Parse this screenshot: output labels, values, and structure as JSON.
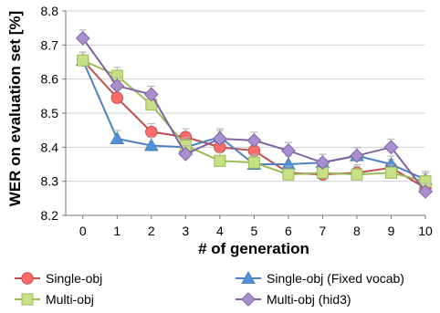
{
  "chart_data": {
    "type": "line",
    "xlabel": "# of generation",
    "ylabel": "WER  on evaluation set [%]",
    "x": [
      0,
      1,
      2,
      3,
      4,
      5,
      6,
      7,
      8,
      9,
      10
    ],
    "ylim": [
      8.2,
      8.8
    ],
    "yticks": [
      "8.2",
      "8.3",
      "8.4",
      "8.5",
      "8.6",
      "8.7",
      "8.8"
    ],
    "xticks": [
      "0",
      "1",
      "2",
      "3",
      "4",
      "5",
      "6",
      "7",
      "8",
      "9",
      "10"
    ],
    "grid": "horizontal",
    "error_bars": true,
    "legend_position": "bottom",
    "series": [
      {
        "name": "Single-obj",
        "marker": "circle",
        "color": "#ff6a6a",
        "line_color": "#c0504d",
        "values": [
          8.655,
          8.545,
          8.445,
          8.43,
          8.4,
          8.39,
          8.325,
          8.32,
          8.325,
          8.34,
          8.28
        ]
      },
      {
        "name": "Single-obj (Fixed vocab)",
        "marker": "triangle",
        "color": "#4f90d8",
        "line_color": "#4f81bd",
        "values": [
          8.655,
          8.425,
          8.405,
          8.4,
          8.43,
          8.35,
          8.35,
          8.355,
          8.375,
          8.35,
          8.305
        ]
      },
      {
        "name": "Multi-obj",
        "marker": "square",
        "color": "#c5e085",
        "line_color": "#9bbb59",
        "values": [
          8.655,
          8.61,
          8.525,
          8.405,
          8.36,
          8.355,
          8.32,
          8.325,
          8.32,
          8.325,
          8.3
        ]
      },
      {
        "name": "Multi-obj (hid3)",
        "marker": "diamond",
        "color": "#a98ed0",
        "line_color": "#8064a2",
        "values": [
          8.72,
          8.58,
          8.555,
          8.38,
          8.425,
          8.42,
          8.39,
          8.355,
          8.375,
          8.4,
          8.27
        ]
      }
    ]
  }
}
